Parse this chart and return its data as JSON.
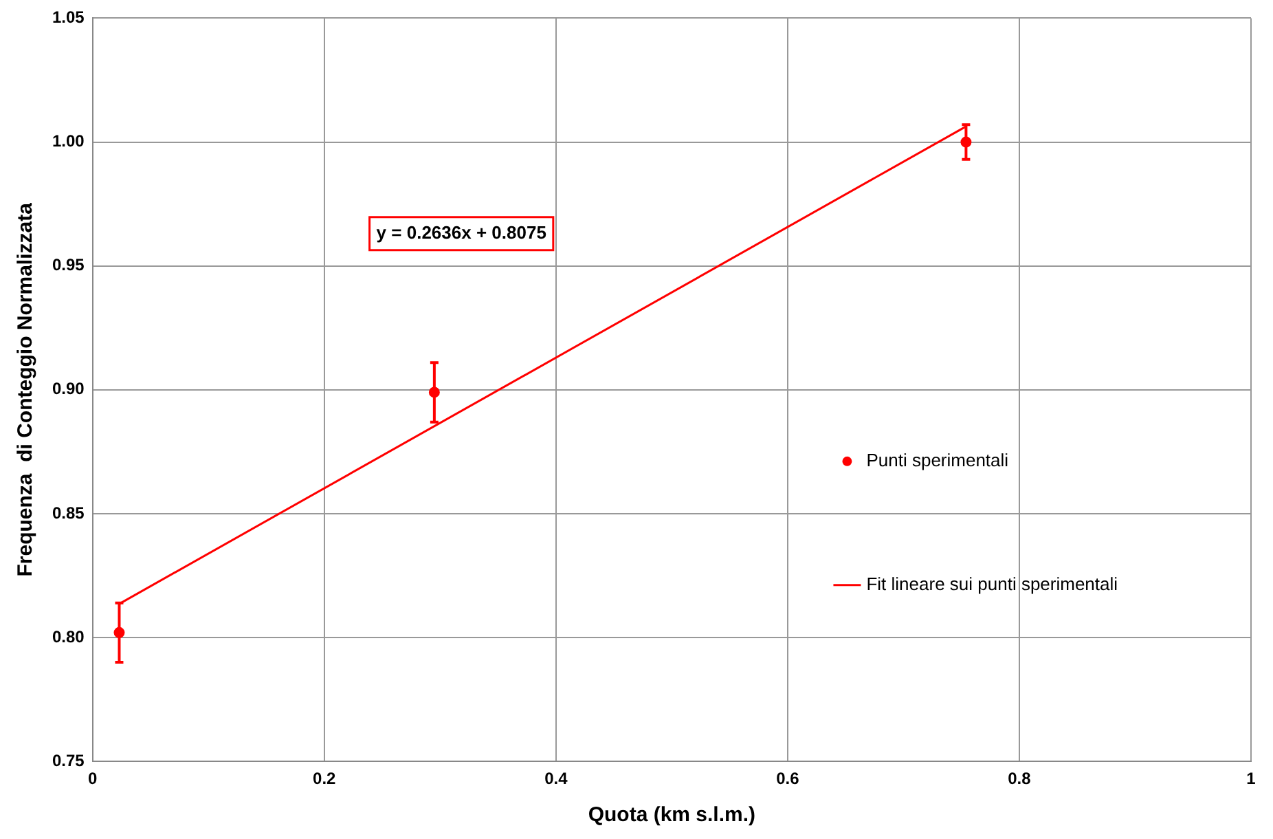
{
  "chart_data": {
    "type": "scatter",
    "xlabel": "Quota (km s.l.m.)",
    "ylabel": "Frequenza  di Conteggio Normalizzata",
    "xlim": [
      0,
      1
    ],
    "xticks": [
      0,
      0.2,
      0.4,
      0.6,
      0.8,
      1
    ],
    "ylim": [
      0.75,
      1.05
    ],
    "yticks": [
      0.75,
      {
        "value": 0.8,
        "label": "0.80"
      },
      0.85,
      {
        "value": 0.9,
        "label": "0.90"
      },
      0.95,
      {
        "value": 1,
        "label": "1.00"
      },
      1.05
    ],
    "grid": true,
    "legend": "right",
    "annotations": [
      "y = 0.2636x + 0.8075"
    ],
    "series": [
      {
        "name": "Punti sperimentali",
        "type": "scatter",
        "color": "#ff0000",
        "marker": "circle",
        "x": [
          0.023,
          0.295,
          0.754
        ],
        "values": [
          0.802,
          0.899,
          1.0
        ],
        "errors": [
          0.012,
          0.012,
          0.007
        ]
      },
      {
        "name": "Fit lineare sui punti sperimentali",
        "type": "line",
        "color": "#ff0000",
        "marker": "none",
        "x": [
          0.023,
          0.754
        ],
        "values": [
          0.8136,
          1.0063
        ]
      }
    ]
  }
}
